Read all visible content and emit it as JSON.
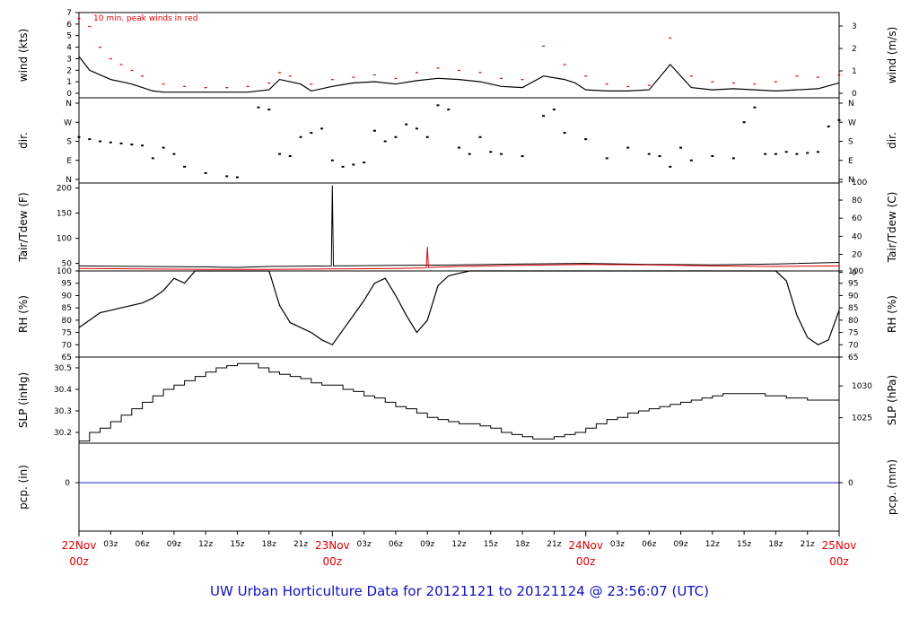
{
  "footer": "UW Urban Horticulture Data for 20121121  to  20121124 @ 23:56:07  (UTC)",
  "colors": {
    "trace": "#000000",
    "peak": "#e00000",
    "precip": "#2020d0",
    "day_label": "#e00000",
    "footer": "#1010c0"
  },
  "chart_data": [
    {
      "type": "line",
      "id": "wind",
      "ylabel": "wind (kts)",
      "ylabel_right": "wind (m/s)",
      "annotation": "10 min. peak winds in red",
      "ylim": [
        0,
        7
      ],
      "yticks": [
        "0",
        "1",
        "2",
        "3",
        "4",
        "5",
        "6",
        "7"
      ],
      "yticks_right": [
        "0",
        "1",
        "2",
        "3"
      ],
      "xlim_hours": [
        0,
        72
      ],
      "series": [
        {
          "role": "wind",
          "x": [
            0,
            1,
            2,
            3,
            4,
            5,
            6,
            7,
            8,
            9,
            10,
            11,
            12,
            14,
            16,
            18,
            19,
            20,
            21,
            22,
            24,
            26,
            28,
            30,
            32,
            34,
            36,
            38,
            40,
            42,
            44,
            46,
            47,
            48,
            50,
            52,
            54,
            56,
            58,
            60,
            62,
            64,
            66,
            68,
            70,
            72
          ],
          "y": [
            3.2,
            2.0,
            1.6,
            1.2,
            1.0,
            0.8,
            0.5,
            0.2,
            0.1,
            0.1,
            0.1,
            0.1,
            0.1,
            0.1,
            0.1,
            0.3,
            1.2,
            1.0,
            0.8,
            0.2,
            0.6,
            0.9,
            1.0,
            0.8,
            1.1,
            1.3,
            1.2,
            1.0,
            0.6,
            0.5,
            1.5,
            1.2,
            0.9,
            0.3,
            0.2,
            0.2,
            0.3,
            2.5,
            0.5,
            0.3,
            0.4,
            0.3,
            0.2,
            0.3,
            0.4,
            0.9
          ]
        },
        {
          "role": "peak",
          "x": [
            0,
            1,
            2,
            3,
            4,
            5,
            6,
            8,
            10,
            12,
            14,
            16,
            18,
            19,
            20,
            22,
            24,
            26,
            28,
            30,
            32,
            34,
            36,
            38,
            40,
            42,
            44,
            46,
            48,
            50,
            52,
            54,
            56,
            58,
            60,
            62,
            64,
            66,
            68,
            70,
            72
          ],
          "y": [
            6.5,
            5.8,
            4.0,
            3.0,
            2.5,
            2.0,
            1.5,
            0.8,
            0.6,
            0.5,
            0.5,
            0.6,
            0.9,
            1.8,
            1.5,
            0.8,
            1.2,
            1.4,
            1.6,
            1.3,
            1.8,
            2.2,
            2.0,
            1.8,
            1.3,
            1.2,
            4.1,
            2.5,
            1.5,
            0.8,
            0.6,
            0.7,
            4.8,
            1.5,
            1.0,
            0.9,
            0.8,
            1.0,
            1.5,
            1.4,
            1.6
          ]
        }
      ]
    },
    {
      "type": "scatter",
      "id": "dir",
      "ylabel": "dir.",
      "ylabel_right": "dir.",
      "yticks": [
        "N",
        "E",
        "S",
        "W",
        "N"
      ],
      "ylim_deg": [
        0,
        360
      ],
      "xlim_hours": [
        0,
        72
      ],
      "x": [
        0,
        1,
        2,
        3,
        4,
        5,
        6,
        7,
        8,
        9,
        10,
        12,
        14,
        15,
        17,
        18,
        19,
        20,
        21,
        22,
        23,
        24,
        25,
        26,
        27,
        28,
        29,
        30,
        31,
        32,
        33,
        34,
        35,
        36,
        37,
        38,
        39,
        40,
        42,
        44,
        45,
        46,
        48,
        50,
        52,
        54,
        55,
        56,
        57,
        58,
        60,
        62,
        63,
        64,
        65,
        66,
        67,
        68,
        69,
        70,
        71,
        72
      ],
      "y": [
        200,
        190,
        180,
        175,
        170,
        165,
        160,
        100,
        150,
        120,
        60,
        30,
        15,
        10,
        340,
        330,
        120,
        110,
        200,
        220,
        240,
        90,
        60,
        70,
        80,
        230,
        180,
        200,
        260,
        240,
        200,
        350,
        330,
        150,
        120,
        200,
        130,
        120,
        110,
        300,
        330,
        220,
        190,
        100,
        150,
        120,
        110,
        60,
        150,
        90,
        110,
        100,
        270,
        340,
        120,
        120,
        130,
        120,
        125,
        130,
        250,
        280
      ]
    },
    {
      "type": "line",
      "id": "temp",
      "ylabel": "Tair/Tdew (F)",
      "ylabel_right": "Tair/Tdew (C)",
      "ylim": [
        35,
        210
      ],
      "yticks": [
        "50",
        "100",
        "150",
        "200"
      ],
      "yticks_right": [
        "0",
        "20",
        "40",
        "60",
        "80",
        "100"
      ],
      "xlim_hours": [
        0,
        72
      ],
      "series": [
        {
          "role": "tair",
          "x": [
            0,
            6,
            12,
            15,
            18,
            23.9,
            24,
            24.1,
            30,
            36,
            42,
            48,
            54,
            60,
            66,
            72
          ],
          "y": [
            45,
            44,
            43,
            42,
            44,
            45,
            205,
            45,
            46,
            47,
            49,
            50,
            48,
            47,
            49,
            52
          ]
        },
        {
          "role": "tdew",
          "x": [
            0,
            6,
            12,
            18,
            24,
            30,
            32.9,
            33,
            33.1,
            36,
            42,
            48,
            54,
            60,
            66,
            72
          ],
          "y": [
            40,
            39,
            38,
            38,
            39,
            40,
            41,
            83,
            42,
            44,
            46,
            48,
            47,
            45,
            44,
            45
          ]
        }
      ]
    },
    {
      "type": "line",
      "id": "rh",
      "ylabel": "RH (%)",
      "ylabel_right": "RH (%)",
      "ylim": [
        65,
        100
      ],
      "yticks": [
        "65",
        "70",
        "75",
        "80",
        "85",
        "90",
        "95",
        "100"
      ],
      "xlim_hours": [
        0,
        72
      ],
      "x": [
        0,
        1,
        2,
        3,
        4,
        5,
        6,
        7,
        8,
        9,
        10,
        11,
        12,
        14,
        16,
        17,
        18,
        19,
        20,
        21,
        22,
        23,
        24,
        25,
        26,
        27,
        28,
        29,
        30,
        31,
        32,
        33,
        34,
        35,
        36,
        37,
        38,
        40,
        42,
        44,
        46,
        48,
        50,
        52,
        54,
        56,
        58,
        60,
        62,
        64,
        65,
        66,
        67,
        68,
        69,
        70,
        71,
        72
      ],
      "y": [
        77,
        80,
        83,
        84,
        85,
        86,
        87,
        89,
        92,
        97,
        95,
        100,
        100,
        100,
        100,
        100,
        100,
        86,
        79,
        77,
        75,
        72,
        70,
        76,
        82,
        88,
        95,
        97,
        90,
        82,
        75,
        80,
        94,
        98,
        99,
        100,
        100,
        100,
        100,
        100,
        100,
        100,
        100,
        100,
        100,
        100,
        100,
        100,
        100,
        100,
        100,
        100,
        96,
        82,
        73,
        70,
        72,
        84
      ]
    },
    {
      "type": "line",
      "id": "slp",
      "ylabel": "SLP (inHg)",
      "ylabel_right": "SLP (hPa)",
      "ylim": [
        30.15,
        30.55
      ],
      "yticks": [
        "30.2",
        "30.3",
        "30.4",
        "30.5"
      ],
      "yticks_right": [
        "1025",
        "1030"
      ],
      "xlim_hours": [
        0,
        72
      ],
      "x": [
        0,
        1,
        2,
        3,
        4,
        5,
        6,
        7,
        8,
        9,
        10,
        11,
        12,
        13,
        14,
        15,
        16,
        17,
        18,
        19,
        20,
        21,
        22,
        23,
        24,
        25,
        26,
        27,
        28,
        29,
        30,
        31,
        32,
        33,
        34,
        35,
        36,
        37,
        38,
        39,
        40,
        41,
        42,
        43,
        44,
        45,
        46,
        47,
        48,
        49,
        50,
        51,
        52,
        53,
        54,
        55,
        56,
        57,
        58,
        59,
        60,
        61,
        62,
        63,
        64,
        65,
        66,
        67,
        68,
        69,
        70,
        71,
        72
      ],
      "y": [
        30.16,
        30.2,
        30.22,
        30.25,
        30.28,
        30.31,
        30.34,
        30.37,
        30.4,
        30.42,
        30.44,
        30.46,
        30.48,
        30.5,
        30.51,
        30.52,
        30.52,
        30.5,
        30.48,
        30.47,
        30.46,
        30.45,
        30.43,
        30.42,
        30.42,
        30.4,
        30.39,
        30.37,
        30.36,
        30.34,
        30.32,
        30.31,
        30.29,
        30.27,
        30.26,
        30.25,
        30.24,
        30.24,
        30.23,
        30.22,
        30.2,
        30.19,
        30.18,
        30.17,
        30.17,
        30.18,
        30.19,
        30.2,
        30.22,
        30.24,
        30.26,
        30.27,
        30.29,
        30.3,
        30.31,
        30.32,
        30.33,
        30.34,
        30.35,
        30.36,
        30.37,
        30.38,
        30.38,
        30.38,
        30.38,
        30.37,
        30.37,
        30.36,
        30.36,
        30.35,
        30.35,
        30.35,
        30.36
      ]
    },
    {
      "type": "line",
      "id": "pcp",
      "ylabel": "pcp. (in)",
      "ylabel_right": "pcp. (mm)",
      "yticks": [
        "0"
      ],
      "yticks_right": [
        "0"
      ],
      "xlim_hours": [
        0,
        72
      ],
      "x": [
        0,
        72
      ],
      "y": [
        0,
        0
      ]
    }
  ],
  "x_axis": {
    "hour_ticks": [
      "03z",
      "06z",
      "09z",
      "12z",
      "15z",
      "18z",
      "21z",
      "03z",
      "06z",
      "09z",
      "12z",
      "15z",
      "18z",
      "21z",
      "03z",
      "06z",
      "09z",
      "12z",
      "15z",
      "18z",
      "21z"
    ],
    "hour_positions": [
      3,
      6,
      9,
      12,
      15,
      18,
      21,
      27,
      30,
      33,
      36,
      39,
      42,
      45,
      51,
      54,
      57,
      60,
      63,
      66,
      69
    ],
    "days": [
      {
        "label": "22Nov",
        "sub": "00z",
        "hour": 0
      },
      {
        "label": "23Nov",
        "sub": "00z",
        "hour": 24
      },
      {
        "label": "24Nov",
        "sub": "00z",
        "hour": 48
      },
      {
        "label": "25Nov",
        "sub": "00z",
        "hour": 72
      }
    ]
  }
}
